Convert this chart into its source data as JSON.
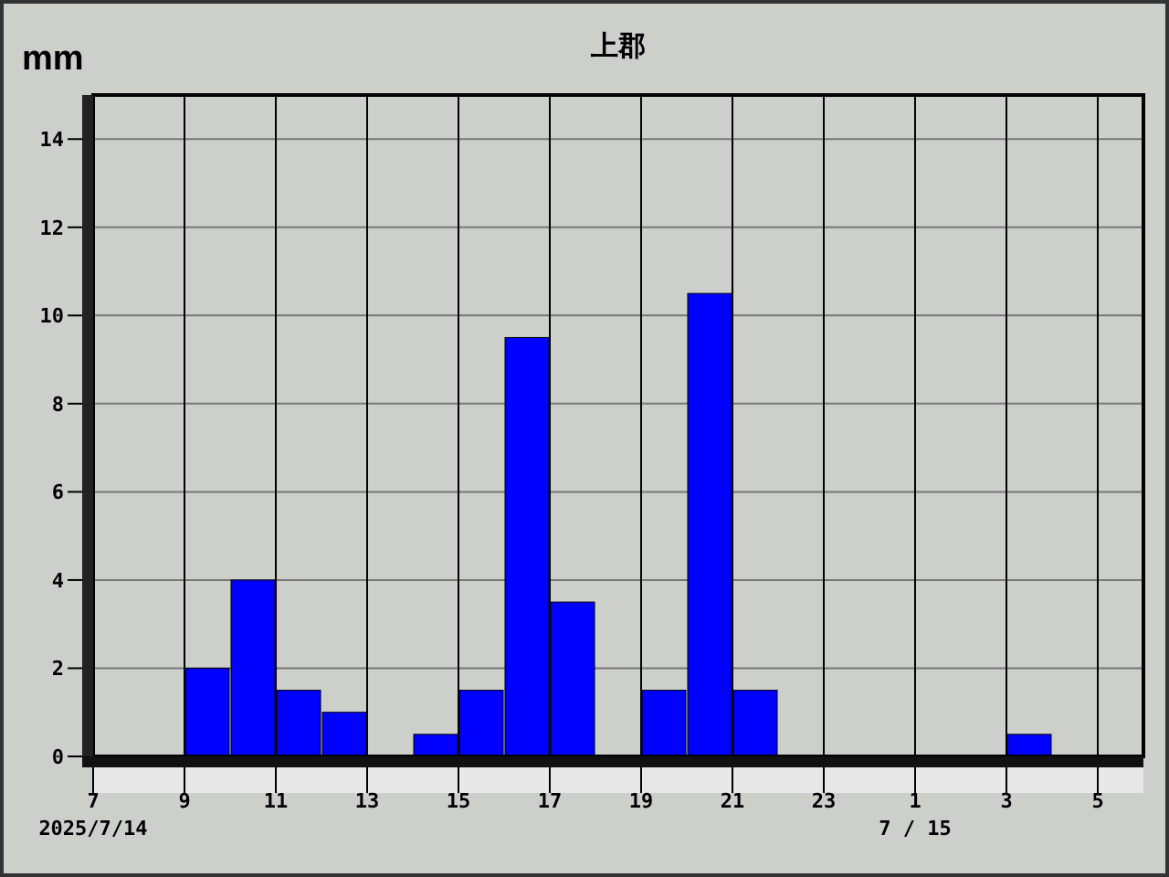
{
  "chart_data": {
    "type": "bar",
    "title": "上郡",
    "ylabel": "mm",
    "x": [
      "2025-07-14T07:30",
      "2025-07-14T08:30",
      "2025-07-14T09:30",
      "2025-07-14T10:30",
      "2025-07-14T11:30",
      "2025-07-14T12:30",
      "2025-07-14T13:30",
      "2025-07-14T14:30",
      "2025-07-14T15:30",
      "2025-07-14T16:30",
      "2025-07-14T17:30",
      "2025-07-14T18:30",
      "2025-07-14T19:30",
      "2025-07-14T20:30",
      "2025-07-14T21:30",
      "2025-07-14T22:30",
      "2025-07-14T23:30",
      "2025-07-15T00:30",
      "2025-07-15T01:30",
      "2025-07-15T02:30",
      "2025-07-15T03:30",
      "2025-07-15T04:30",
      "2025-07-15T05:30"
    ],
    "values": [
      0,
      0,
      2.0,
      4.0,
      1.5,
      1.0,
      0,
      0.5,
      1.5,
      9.5,
      3.5,
      0,
      1.5,
      10.5,
      1.5,
      0,
      0,
      0,
      0,
      0,
      0.5,
      0,
      0
    ],
    "color": "#0000ff",
    "xlim": [
      "2025-07-14T07:00",
      "2025-07-15T06:00"
    ],
    "xticks": [
      {
        "value": "2025-07-14T07:00",
        "label": "7"
      },
      {
        "value": "2025-07-14T09:00",
        "label": "9"
      },
      {
        "value": "2025-07-14T11:00",
        "label": "11"
      },
      {
        "value": "2025-07-14T13:00",
        "label": "13"
      },
      {
        "value": "2025-07-14T15:00",
        "label": "15"
      },
      {
        "value": "2025-07-14T17:00",
        "label": "17"
      },
      {
        "value": "2025-07-14T19:00",
        "label": "19"
      },
      {
        "value": "2025-07-14T21:00",
        "label": "21"
      },
      {
        "value": "2025-07-14T23:00",
        "label": "23"
      },
      {
        "value": "2025-07-15T01:00",
        "label": "1"
      },
      {
        "value": "2025-07-15T03:00",
        "label": "3"
      },
      {
        "value": "2025-07-15T05:00",
        "label": "5"
      }
    ],
    "ylim": [
      0,
      15
    ],
    "yticks": [
      0,
      2,
      4,
      6,
      8,
      10,
      12,
      14
    ],
    "grid": true,
    "annotations": [
      "2025/7/14",
      "7 / 15"
    ]
  }
}
